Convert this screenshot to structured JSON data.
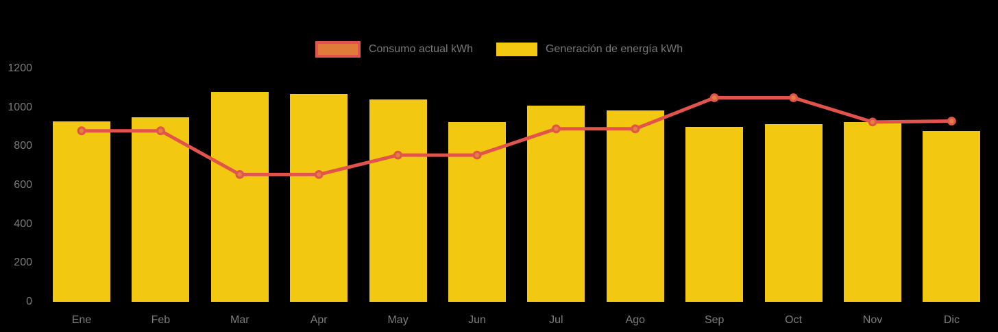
{
  "colors": {
    "background": "#000000",
    "bar": "#F2C811",
    "line": "#E2544B",
    "marker_fill": "#E0823C",
    "axis_text": "#7d7d7d",
    "legend_text": "#797979"
  },
  "legend": {
    "position": "top",
    "items": [
      {
        "label": "Consumo actual kWh",
        "swatch_fill": "#E07B39",
        "swatch_border": "#E2544B",
        "swatch_type": "line"
      },
      {
        "label": "Generación de energía kWh",
        "swatch_fill": "#F2C811",
        "swatch_border": "#F2C811",
        "swatch_type": "bar"
      }
    ]
  },
  "chart_data": {
    "type": "bar",
    "subtype": "bar-with-line-overlay",
    "title": "",
    "xlabel": "",
    "ylabel": "",
    "categories": [
      "Ene",
      "Feb",
      "Mar",
      "Apr",
      "May",
      "Jun",
      "Jul",
      "Ago",
      "Sep",
      "Oct",
      "Nov",
      "Dic"
    ],
    "series": [
      {
        "name": "Consumo actual kWh",
        "type": "line",
        "color": "#E2544B",
        "marker_color": "#E0823C",
        "values": [
          880,
          880,
          655,
          655,
          755,
          755,
          890,
          890,
          1050,
          1050,
          925,
          930
        ]
      },
      {
        "name": "Generación de energía kWh",
        "type": "bar",
        "color": "#F2C811",
        "values": [
          930,
          950,
          1080,
          1070,
          1040,
          925,
          1010,
          985,
          900,
          915,
          925,
          880
        ]
      }
    ],
    "ylim": [
      0,
      1200
    ],
    "yticks": [
      0,
      200,
      400,
      600,
      800,
      1000,
      1200
    ],
    "grid": false,
    "legend_position": "top"
  }
}
